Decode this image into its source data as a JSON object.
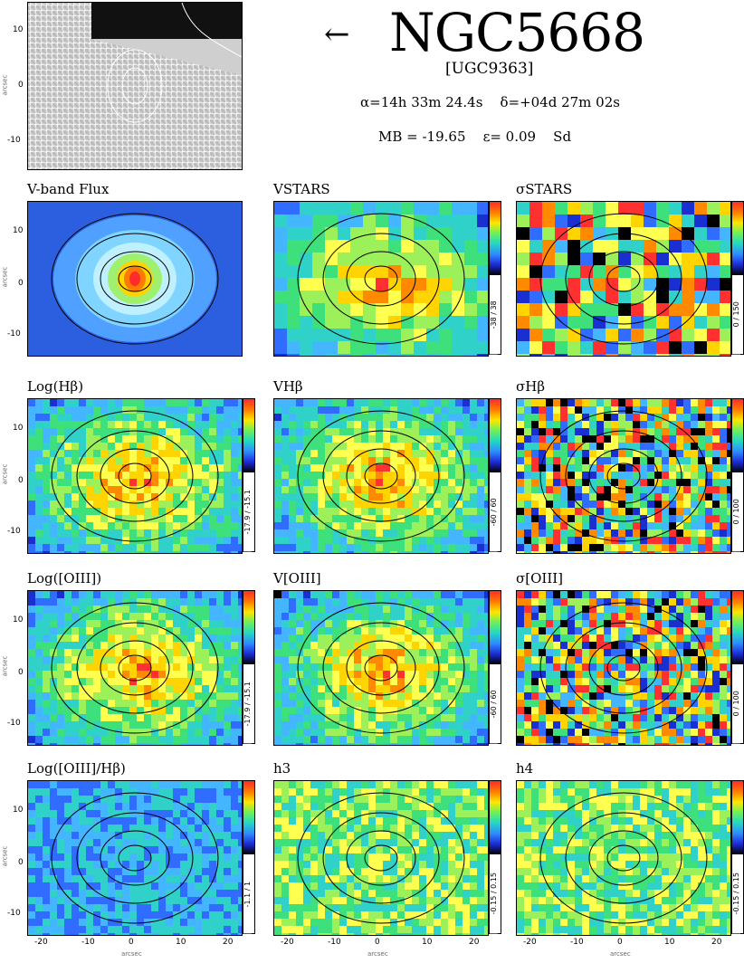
{
  "header": {
    "title": "NGC5668",
    "alt_name": "[UGC9363]",
    "arrow": "←",
    "ra": "α=14h 33m 24.4s",
    "dec": "δ=+04d 27m 02s",
    "mag": "MB = -19.65",
    "eps": "ε= 0.09",
    "type": "Sd"
  },
  "axis": {
    "y_ticks": [
      "10",
      "0",
      "-10"
    ],
    "x_ticks": [
      "-20",
      "-10",
      "0",
      "10",
      "20"
    ],
    "ylabel": "arcsec",
    "xlabel": "arcsec"
  },
  "panels": [
    {
      "title": "V-band Flux",
      "range": ""
    },
    {
      "title": "VSTARS",
      "range": "-38 / 38"
    },
    {
      "title": "σSTARS",
      "range": "0 / 150"
    },
    {
      "title": "Log(Hβ)",
      "range": "-17.9 / -15.1"
    },
    {
      "title": "VHβ",
      "range": "-60 / 60"
    },
    {
      "title": "σHβ",
      "range": "0 / 100"
    },
    {
      "title": "Log([OIII])",
      "range": "-17.9 / -15.1"
    },
    {
      "title": "V[OIII]",
      "range": "-60 / 60"
    },
    {
      "title": "σ[OIII]",
      "range": "0 / 100"
    },
    {
      "title": "Log([OIII]/Hβ)",
      "range": "-1.1 / 1"
    },
    {
      "title": "h3",
      "range": "-0.15 / 0.15"
    },
    {
      "title": "h4",
      "range": "-0.15 / 0.15"
    }
  ],
  "colors": {
    "flux_bg": "#2c5fe0",
    "map_base": "#7fe0d0"
  }
}
